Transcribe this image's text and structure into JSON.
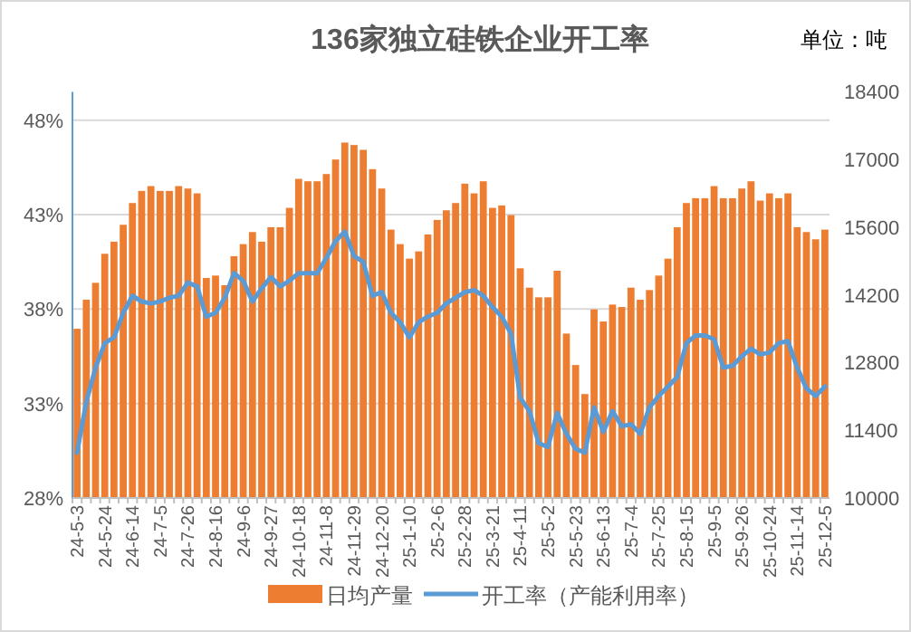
{
  "chart_data": {
    "type": "bar",
    "title": "136家独立硅铁企业开工率",
    "annotations": [
      "单位：吨"
    ],
    "categories": [
      "24-5-3",
      null,
      null,
      "24-5-24",
      null,
      null,
      "24-6-14",
      null,
      null,
      "24-7-5",
      null,
      null,
      "24-7-26",
      null,
      null,
      "24-8-16",
      null,
      null,
      "24-9-6",
      null,
      null,
      "24-9-27",
      null,
      null,
      "24-10-18",
      null,
      null,
      "24-11-8",
      null,
      null,
      "24-11-29",
      null,
      null,
      "24-12-20",
      null,
      null,
      "25-1-10",
      null,
      null,
      "25-2-6",
      null,
      null,
      "25-2-28",
      null,
      null,
      "25-3-21",
      null,
      null,
      "25-4-11",
      null,
      null,
      "25-5-2",
      null,
      null,
      "25-5-23",
      null,
      null,
      "25-6-13",
      null,
      null,
      "25-7-4",
      null,
      null,
      "25-7-25",
      null,
      null,
      "25-8-15",
      null,
      null,
      "25-9-5",
      null,
      null,
      "25-9-26",
      null,
      null,
      "25-10-24",
      null,
      null,
      "25-11-14",
      null,
      null,
      "25-12-5"
    ],
    "series": [
      {
        "name": "日均产量",
        "axis": "y2",
        "color": "#ed7d31",
        "values": [
          13500,
          14100,
          14450,
          15050,
          15300,
          15650,
          16100,
          16350,
          16450,
          16350,
          16350,
          16450,
          16400,
          16300,
          14550,
          14600,
          14400,
          15000,
          15250,
          15500,
          15300,
          15600,
          15600,
          16000,
          16600,
          16550,
          16550,
          16700,
          17000,
          17350,
          17300,
          17200,
          16800,
          16400,
          15550,
          15250,
          14950,
          15100,
          15450,
          15750,
          15950,
          16100,
          16500,
          16300,
          16550,
          16000,
          16050,
          15850,
          14750,
          14350,
          14150,
          14150,
          14700,
          13400,
          12750,
          12150,
          13900,
          13650,
          14000,
          13950,
          14350,
          14100,
          14300,
          14600,
          14950,
          15600,
          16100,
          16200,
          16200,
          16450,
          16200,
          16200,
          16400,
          16550,
          16150,
          16300,
          16200,
          16300,
          15600,
          15500,
          15350,
          15550
        ]
      },
      {
        "name": "开工率（产能利用率）",
        "type": "line",
        "color": "#5b9bd5",
        "values": [
          30.4,
          33.1,
          34.9,
          36.2,
          36.5,
          37.8,
          38.7,
          38.4,
          38.3,
          38.4,
          38.6,
          38.7,
          39.4,
          39.2,
          37.6,
          37.8,
          38.6,
          39.9,
          39.5,
          38.4,
          39.1,
          39.7,
          39.2,
          39.5,
          39.9,
          39.9,
          39.9,
          40.7,
          41.6,
          42.1,
          40.8,
          40.5,
          38.7,
          38.9,
          37.8,
          37.3,
          36.5,
          37.3,
          37.6,
          37.8,
          38.3,
          38.6,
          38.9,
          39.0,
          38.7,
          38.1,
          37.6,
          36.7,
          33.3,
          32.6,
          30.9,
          30.7,
          32.5,
          31.4,
          30.6,
          30.4,
          32.8,
          31.5,
          32.6,
          31.8,
          31.9,
          31.4,
          32.8,
          33.4,
          33.9,
          34.4,
          36.2,
          36.6,
          36.6,
          36.4,
          34.9,
          35.0,
          35.5,
          35.9,
          35.6,
          35.7,
          36.2,
          36.3,
          34.9,
          33.8,
          33.4,
          33.9
        ]
      }
    ],
    "ylim": [
      28,
      49.5
    ],
    "yticks": [
      {
        "value": 28,
        "label": "28%"
      },
      {
        "value": 33,
        "label": "33%"
      },
      {
        "value": 38,
        "label": "38%"
      },
      {
        "value": 43,
        "label": "43%"
      },
      {
        "value": 48,
        "label": "48%"
      }
    ],
    "y2lim": [
      10000,
      18400
    ],
    "y2ticks": [
      10000,
      11400,
      12800,
      14200,
      15600,
      17000,
      18400
    ],
    "grid": "y",
    "legend": "bottom",
    "marker": "none",
    "line_style": "solid"
  }
}
